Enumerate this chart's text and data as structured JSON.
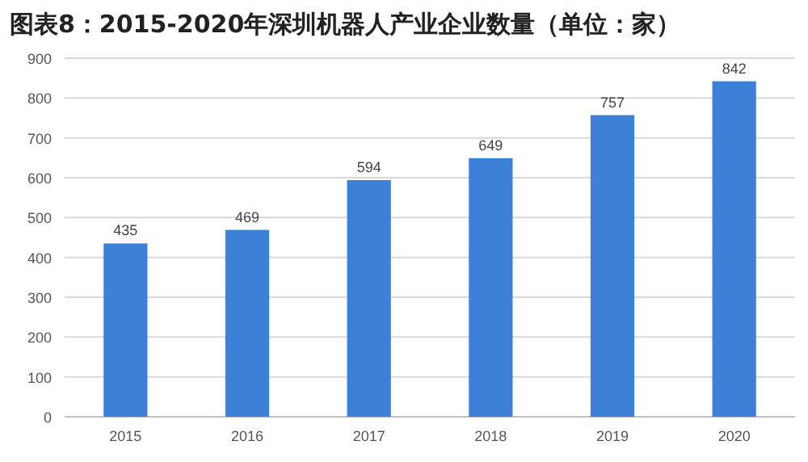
{
  "chart_data": {
    "type": "bar",
    "title": "图表8：2015-2020年深圳机器人产业企业数量（单位：家）",
    "categories": [
      "2015",
      "2016",
      "2017",
      "2018",
      "2019",
      "2020"
    ],
    "values": [
      435,
      469,
      594,
      649,
      757,
      842
    ],
    "color": "#3c80d8",
    "ylim": [
      0,
      900
    ],
    "yticks": [
      0,
      100,
      200,
      300,
      400,
      500,
      600,
      700,
      800,
      900
    ],
    "grid": "y",
    "data_labels": true
  }
}
